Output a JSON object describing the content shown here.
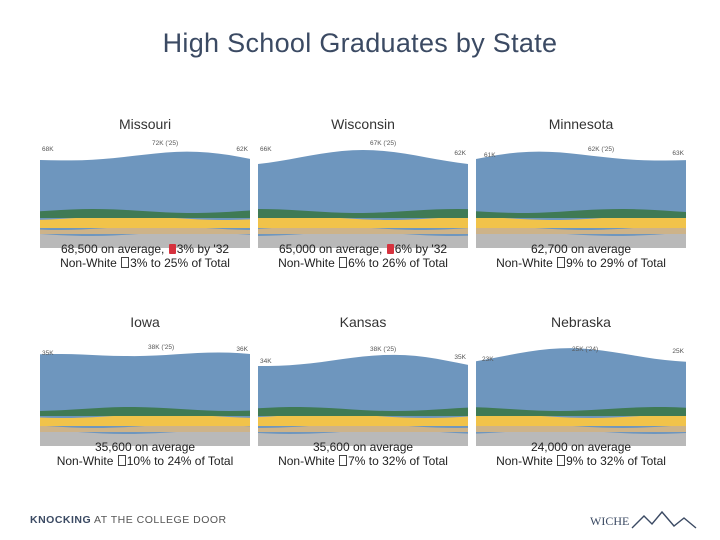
{
  "title": "High School Graduates by State",
  "states": [
    {
      "name": "Missouri",
      "start": "68K",
      "peak": "72K ('25)",
      "end": "62K",
      "line1": "68,500 on average,",
      "line1b": "3% by '32",
      "line1_up": true,
      "line2a": "Non-White",
      "line2b": "3% to 25% of Total"
    },
    {
      "name": "Wisconsin",
      "start": "66K",
      "peak": "67K ('25)",
      "end": "62K",
      "line1": "65,000 on average,",
      "line1b": "6% by '32",
      "line1_up": true,
      "line2a": "Non-White",
      "line2b": "6% to 26% of Total"
    },
    {
      "name": "Minnesota",
      "start": "61K",
      "peak": "62K ('25)",
      "end": "63K",
      "line1": "62,700 on average",
      "line1b": "",
      "line1_up": false,
      "line2a": "Non-White",
      "line2b": "9% to 29% of Total"
    },
    {
      "name": "Iowa",
      "start": "35K",
      "peak": "38K ('25)",
      "end": "36K",
      "line1": "35,600 on average",
      "line1b": "",
      "line1_up": false,
      "line2a": "Non-White",
      "line2b": "10% to 24% of Total"
    },
    {
      "name": "Kansas",
      "start": "34K",
      "peak": "38K ('25)",
      "end": "35K",
      "line1": "35,600 on average",
      "line1b": "",
      "line1_up": false,
      "line2a": "Non-White",
      "line2b": "7% to 32% of Total"
    },
    {
      "name": "Nebraska",
      "start": "23K",
      "peak": "25K ('24)",
      "end": "25K",
      "line1": "24,000 on average",
      "line1b": "",
      "line1_up": false,
      "line2a": "Non-White",
      "line2b": "9% to 32% of Total"
    }
  ],
  "footer": {
    "left_a": "KNOCKING",
    "left_b": "AT THE COLLEGE DOOR",
    "right": "WICHE"
  },
  "colors": {
    "blue": "#6e96be",
    "green": "#3f7a55",
    "yellow": "#f1c34a",
    "tan": "#cdb389",
    "gray": "#b9b9b9"
  }
}
